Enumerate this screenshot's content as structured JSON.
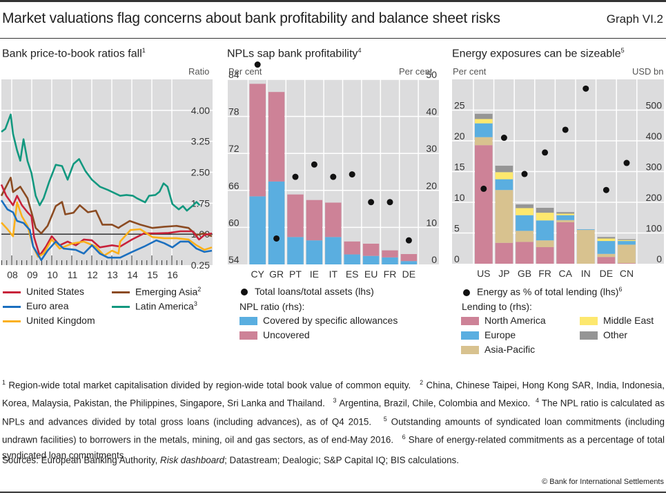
{
  "header": {
    "title": "Market valuations flag concerns about bank profitability and balance sheet risks",
    "graph_number": "Graph VI.2"
  },
  "panels": [
    {
      "title": "Bank price-to-book ratios fall",
      "footnote_ref": "1",
      "unit_left": "",
      "unit_right": "Ratio"
    },
    {
      "title": "NPLs sap bank profitability",
      "footnote_ref": "4",
      "unit_left": "Per cent",
      "unit_right": "Per cent"
    },
    {
      "title": "Energy exposures can be sizeable",
      "footnote_ref": "5",
      "unit_left": "Per cent",
      "unit_right": "USD bn"
    }
  ],
  "legends": {
    "p2b": [
      {
        "label": "United States",
        "ref": ""
      },
      {
        "label": "Emerging Asia",
        "ref": "2"
      },
      {
        "label": "Euro area",
        "ref": ""
      },
      {
        "label": "Latin America",
        "ref": "3"
      },
      {
        "label": "United Kingdom",
        "ref": ""
      }
    ],
    "npl": {
      "dot_label": "Total loans/total assets (lhs)",
      "group_title": "NPL ratio (rhs):",
      "items": [
        "Covered by specific allowances",
        "Uncovered"
      ]
    },
    "energy": {
      "dot_label": "Energy as % of total lending (lhs)",
      "dot_ref": "6",
      "group_title": "Lending to (rhs):",
      "items": [
        "North America",
        "Middle East",
        "Europe",
        "Other",
        "Asia-Pacific"
      ]
    }
  },
  "chart_data": [
    {
      "type": "line",
      "title": "Bank price-to-book ratios fall",
      "ylabel": "Ratio",
      "ylim": [
        0.25,
        4.75
      ],
      "y_ticks": [
        4.0,
        3.25,
        2.5,
        1.75,
        1.0,
        0.25
      ],
      "y_tick_labels": [
        "4.00",
        "3.25",
        "2.50",
        "1.75",
        "1.00",
        "0.25"
      ],
      "x_range": [
        2007.5,
        2016.55
      ],
      "x_tick_labels": [
        "08",
        "09",
        "10",
        "11",
        "12",
        "13",
        "14",
        "15",
        "16"
      ],
      "reference_line": 1.0,
      "grid": true,
      "series": [
        {
          "name": "Latin America",
          "color": "#12987f",
          "x": [
            2007.5,
            2007.67,
            2007.9,
            2008.0,
            2008.17,
            2008.31,
            2008.45,
            2008.62,
            2008.79,
            2008.97,
            2009.14,
            2009.31,
            2009.55,
            2009.83,
            2010.1,
            2010.34,
            2010.59,
            2010.83,
            2011.1,
            2011.38,
            2011.72,
            2012.07,
            2012.59,
            2012.86,
            2013.14,
            2013.31,
            2013.66,
            2013.83,
            2014.1,
            2014.28,
            2014.45,
            2014.62,
            2014.83,
            2015.1,
            2015.28,
            2015.45,
            2015.72,
            2015.86,
            2016.0
          ],
          "y": [
            3.48,
            3.55,
            3.9,
            3.43,
            3.03,
            2.78,
            3.3,
            2.77,
            2.48,
            1.93,
            1.7,
            1.87,
            2.27,
            2.68,
            2.65,
            2.32,
            2.7,
            2.82,
            2.53,
            2.32,
            2.15,
            2.07,
            1.93,
            1.95,
            1.93,
            1.87,
            1.77,
            1.93,
            1.95,
            2.03,
            2.23,
            2.15,
            1.73,
            1.6,
            1.68,
            1.57,
            1.7,
            1.78,
            1.7
          ]
        },
        {
          "name": "Emerging Asia",
          "color": "#8b4b22",
          "x": [
            2007.5,
            2007.9,
            2008.0,
            2008.31,
            2008.62,
            2008.79,
            2008.97,
            2009.21,
            2009.48,
            2009.83,
            2010.1,
            2010.24,
            2010.59,
            2010.86,
            2011.21,
            2011.55,
            2011.83,
            2012.24,
            2012.52,
            2012.59,
            2013.0,
            2013.45,
            2013.97,
            2014.48,
            2015.0,
            2015.52,
            2015.86,
            2016.2,
            2016.52
          ],
          "y": [
            1.93,
            2.37,
            2.02,
            2.15,
            1.87,
            1.53,
            1.15,
            1.02,
            1.2,
            1.68,
            1.78,
            1.48,
            1.52,
            1.7,
            1.53,
            1.57,
            1.23,
            1.23,
            1.15,
            1.18,
            1.32,
            1.23,
            1.15,
            1.18,
            1.2,
            1.15,
            0.98,
            1.02,
            0.95
          ]
        },
        {
          "name": "United States",
          "color": "#c8213a",
          "x": [
            2007.5,
            2007.71,
            2008.0,
            2008.17,
            2008.38,
            2008.62,
            2008.79,
            2008.9,
            2009.14,
            2009.41,
            2009.66,
            2010.0,
            2010.34,
            2010.69,
            2011.03,
            2011.38,
            2011.72,
            2012.24,
            2012.59,
            2013.1,
            2013.62,
            2014.14,
            2014.66,
            2015.17,
            2015.69,
            2015.97,
            2016.2,
            2016.52
          ],
          "y": [
            2.2,
            1.93,
            1.7,
            1.93,
            1.7,
            1.53,
            1.43,
            0.93,
            0.48,
            0.7,
            0.95,
            0.73,
            0.82,
            0.73,
            0.87,
            0.85,
            0.68,
            0.73,
            0.7,
            0.87,
            1.02,
            1.02,
            1.03,
            1.07,
            1.07,
            0.87,
            0.98,
            1.02
          ]
        },
        {
          "name": "United Kingdom",
          "color": "#fbb01a",
          "x": [
            2007.5,
            2007.76,
            2008.0,
            2008.17,
            2008.38,
            2008.62,
            2008.86,
            2009.07,
            2009.31,
            2009.66,
            2010.0,
            2010.52,
            2011.03,
            2011.55,
            2011.9,
            2012.24,
            2012.52,
            2012.59,
            2013.03,
            2013.45,
            2013.97,
            2014.48,
            2015.0,
            2015.52,
            2015.86,
            2016.2,
            2016.52
          ],
          "y": [
            1.28,
            1.12,
            0.95,
            1.77,
            1.43,
            1.2,
            0.7,
            0.45,
            0.53,
            0.87,
            0.65,
            0.77,
            0.82,
            0.7,
            0.48,
            0.6,
            0.53,
            0.82,
            1.1,
            1.12,
            0.93,
            0.9,
            0.9,
            0.87,
            0.73,
            0.62,
            0.68
          ]
        },
        {
          "name": "Euro area",
          "color": "#1b6fbf",
          "x": [
            2007.5,
            2007.76,
            2008.0,
            2008.17,
            2008.45,
            2008.72,
            2008.86,
            2009.21,
            2009.48,
            2009.83,
            2010.17,
            2010.69,
            2011.03,
            2011.38,
            2011.72,
            2012.07,
            2012.52,
            2012.59,
            2013.1,
            2013.62,
            2014.14,
            2014.48,
            2014.83,
            2015.17,
            2015.52,
            2015.86,
            2016.2,
            2016.52
          ],
          "y": [
            1.82,
            1.6,
            1.53,
            1.32,
            1.27,
            1.1,
            0.7,
            0.37,
            0.6,
            0.82,
            0.65,
            0.62,
            0.53,
            0.73,
            0.53,
            0.43,
            0.43,
            0.43,
            0.57,
            0.7,
            0.85,
            0.78,
            0.68,
            0.82,
            0.82,
            0.65,
            0.57,
            0.6
          ]
        }
      ]
    },
    {
      "type": "bar",
      "stacked": true,
      "title": "NPLs sap bank profitability",
      "categories": [
        "CY",
        "GR",
        "PT",
        "IE",
        "IT",
        "ES",
        "EU",
        "FR",
        "DE"
      ],
      "ylabel_left": "Per cent",
      "ylabel_right": "Per cent",
      "ylim_left": [
        54,
        84
      ],
      "ylim_right": [
        0,
        50
      ],
      "y_ticks_left": [
        84,
        78,
        72,
        66,
        60,
        54
      ],
      "y_ticks_right": [
        50,
        40,
        30,
        20,
        10,
        0
      ],
      "grid": true,
      "series": [
        {
          "name": "Covered by specific allowances",
          "axis": "right",
          "color": "#5aaee0",
          "values": [
            18.4,
            22.4,
            7.4,
            6.5,
            7.4,
            2.7,
            2.3,
            1.9,
            0.9
          ]
        },
        {
          "name": "Uncovered",
          "axis": "right",
          "color": "#cd8297",
          "values": [
            30.4,
            24.2,
            11.5,
            10.9,
            9.3,
            3.5,
            3.3,
            1.9,
            1.9
          ]
        }
      ],
      "dots": {
        "name": "Total loans/total assets (lhs)",
        "axis": "left",
        "color": "#111111",
        "values": [
          86.4,
          58.2,
          68.2,
          70.2,
          68.2,
          68.6,
          64.1,
          64.1,
          57.9
        ]
      }
    },
    {
      "type": "bar",
      "stacked": true,
      "title": "Energy exposures can be sizeable",
      "categories": [
        "US",
        "JP",
        "GB",
        "FR",
        "CA",
        "IN",
        "DE",
        "CN"
      ],
      "ylabel_left": "Per cent",
      "ylabel_right": "USD bn",
      "ylim_left": [
        0,
        30
      ],
      "ylim_right": [
        0,
        600
      ],
      "y_ticks_left": [
        25,
        20,
        15,
        10,
        5,
        0
      ],
      "y_ticks_right": [
        500,
        400,
        300,
        200,
        100,
        0
      ],
      "grid": true,
      "series": [
        {
          "name": "North America",
          "axis": "right",
          "color": "#cd8297",
          "values": [
            386,
            68,
            71,
            54,
            135,
            0,
            22,
            2
          ]
        },
        {
          "name": "Asia-Pacific",
          "axis": "right",
          "color": "#d8c28f",
          "values": [
            26,
            172,
            36,
            22,
            7,
            110,
            10,
            60
          ]
        },
        {
          "name": "Europe",
          "axis": "right",
          "color": "#5aaee0",
          "values": [
            45,
            35,
            51,
            65,
            16,
            2,
            42,
            12
          ]
        },
        {
          "name": "Middle East",
          "axis": "right",
          "color": "#fde86e",
          "values": [
            14,
            23,
            23,
            25,
            5,
            0,
            8,
            3
          ]
        },
        {
          "name": "Other",
          "axis": "right",
          "color": "#959595",
          "values": [
            17,
            21,
            12,
            16,
            5,
            0,
            5,
            3
          ]
        }
      ],
      "dots": {
        "name": "Energy as % of total lending (lhs)",
        "axis": "left",
        "color": "#111111",
        "values": [
          12.2,
          20.5,
          14.6,
          18.1,
          21.8,
          28.5,
          12.0,
          16.4
        ]
      }
    }
  ],
  "footnotes": [
    {
      "ref": "1",
      "text": "Region-wide total market capitalisation divided by region-wide total book value of common equity."
    },
    {
      "ref": "2",
      "text": "China, Chinese Taipei, Hong Kong SAR, India, Indonesia, Korea, Malaysia, Pakistan, the Philippines, Singapore, Sri Lanka and Thailand."
    },
    {
      "ref": "3",
      "text": "Argentina, Brazil, Chile, Colombia and Mexico."
    },
    {
      "ref": "4",
      "text": "The NPL ratio is calculated as NPLs and advances divided by total gross loans (including advances), as of Q4 2015."
    },
    {
      "ref": "5",
      "text": "Outstanding amounts of syndicated loan commitments (including undrawn facilities) to borrowers in the metals, mining, oil and gas sectors, as of end-May 2016."
    },
    {
      "ref": "6",
      "text": "Share of energy-related commitments as a percentage of total syndicated loan commitments."
    }
  ],
  "sources": {
    "prefix": "Sources: European Banking Authority, ",
    "italic": "Risk dashboard",
    "suffix": "; Datastream; Dealogic; S&P Capital IQ; BIS calculations."
  },
  "copyright": "© Bank for International Settlements",
  "colors": {
    "plot_bg": "#dcdcdd",
    "grid": "#ffffff"
  }
}
